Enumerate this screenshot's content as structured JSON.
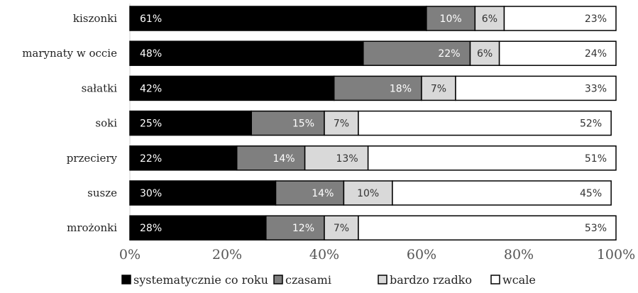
{
  "chart_data": {
    "type": "bar",
    "orientation": "horizontal",
    "stacked": "percent",
    "categories": [
      "kiszonki",
      "marynaty w occie",
      "sałatki",
      "soki",
      "przeciery",
      "susze",
      "mrożonki"
    ],
    "series": [
      {
        "name": "systematycznie co roku",
        "values": [
          61,
          48,
          42,
          25,
          22,
          30,
          28
        ],
        "labels": [
          "61%",
          "48%",
          "42%",
          "25%",
          "22%",
          "30%",
          "28%"
        ],
        "color": "#000000",
        "label_color": "#ffffff"
      },
      {
        "name": "czasami",
        "values": [
          10,
          22,
          18,
          15,
          14,
          14,
          12
        ],
        "labels": [
          "10%",
          "22%",
          "18%",
          "15%",
          "14%",
          "14%",
          "12%"
        ],
        "color": "#7f7f7f",
        "label_color": "#ffffff"
      },
      {
        "name": "bardzo rzadko",
        "values": [
          6,
          6,
          7,
          7,
          13,
          10,
          7
        ],
        "labels": [
          "6%",
          "6%",
          "7%",
          "7%",
          "13%",
          "10%",
          "7%"
        ],
        "color": "#d9d9d9",
        "label_color": "#333333"
      },
      {
        "name": "wcale",
        "values": [
          23,
          24,
          33,
          52,
          51,
          45,
          53
        ],
        "labels": [
          "23%",
          "24%",
          "33%",
          "52%",
          "51%",
          "45%",
          "53%"
        ],
        "color": "#ffffff",
        "label_color": "#333333"
      }
    ],
    "x_ticks": [
      "0%",
      "20%",
      "40%",
      "60%",
      "80%",
      "100%"
    ],
    "xlim": [
      0,
      100
    ],
    "grid": false,
    "legend_position": "bottom"
  }
}
